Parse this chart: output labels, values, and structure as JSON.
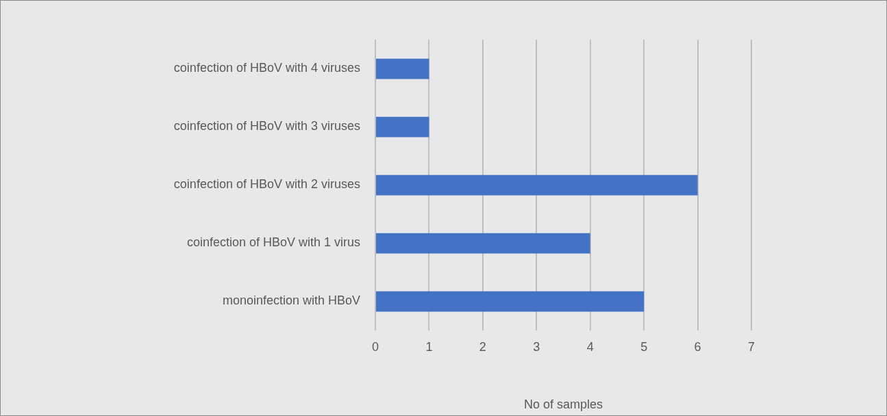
{
  "chart_data": {
    "type": "bar",
    "orientation": "horizontal",
    "xlabel": "No of samples",
    "categories": [
      "coinfection of HBoV with 4 viruses",
      "coinfection of HBoV with 3 viruses",
      "coinfection of HBoV with 2 viruses",
      "coinfection of HBoV with 1 virus",
      "monoinfection with HBoV"
    ],
    "values": [
      1,
      1,
      6,
      4,
      5
    ],
    "color": "#4472c4",
    "xlim": [
      0,
      7
    ],
    "xticks": [
      0,
      1,
      2,
      3,
      4,
      5,
      6,
      7
    ],
    "grid": "x",
    "legend": false
  }
}
